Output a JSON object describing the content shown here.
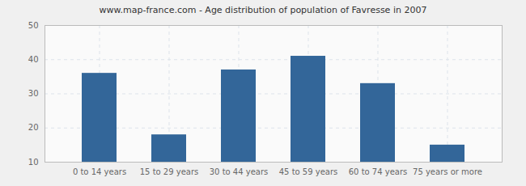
{
  "chart_data": {
    "type": "bar",
    "title": "www.map-france.com - Age distribution of population of Favresse in 2007",
    "categories": [
      "0 to 14 years",
      "15 to 29 years",
      "30 to 44 years",
      "45 to 59 years",
      "60 to 74 years",
      "75 years or more"
    ],
    "values": [
      36,
      18,
      37,
      41,
      33,
      15
    ],
    "color": "#336699",
    "ylim": [
      10,
      50
    ],
    "yticks": [
      10,
      20,
      30,
      40,
      50
    ],
    "grid": true
  }
}
